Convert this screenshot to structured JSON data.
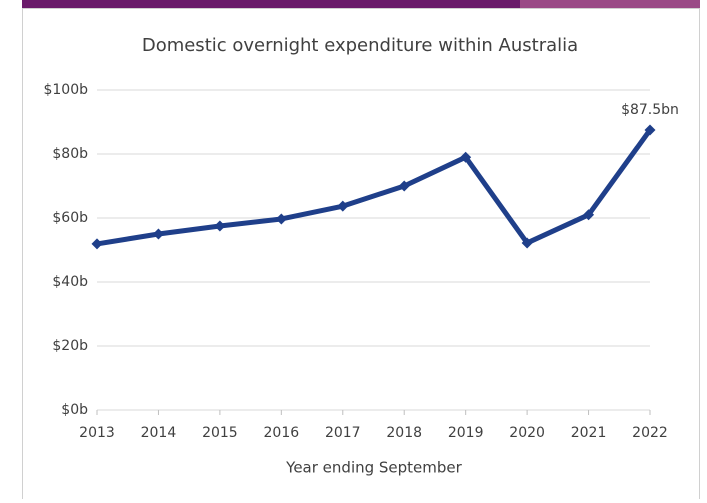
{
  "chart_data": {
    "type": "line",
    "title": "Domestic overnight expenditure within Australia",
    "x_label": "Year ending September",
    "categories": [
      "2013",
      "2014",
      "2015",
      "2016",
      "2017",
      "2018",
      "2019",
      "2020",
      "2021",
      "2022"
    ],
    "series": [
      {
        "name": "Domestic overnight expenditure",
        "color": "#1f3f8a",
        "values": [
          51.9,
          55,
          57.5,
          59.7,
          63.7,
          70,
          79,
          52.2,
          61,
          87.5
        ],
        "value_labels": [
          null,
          null,
          null,
          null,
          null,
          null,
          null,
          null,
          null,
          "$87.5bn"
        ]
      }
    ],
    "ylim": [
      0,
      100
    ],
    "yticks": [
      {
        "value": 0,
        "label": "$0b"
      },
      {
        "value": 20,
        "label": "$20b"
      },
      {
        "value": 40,
        "label": "$40b"
      },
      {
        "value": 60,
        "label": "$60b"
      },
      {
        "value": 80,
        "label": "$80b"
      },
      {
        "value": 100,
        "label": "$100b"
      }
    ],
    "grid": true
  }
}
